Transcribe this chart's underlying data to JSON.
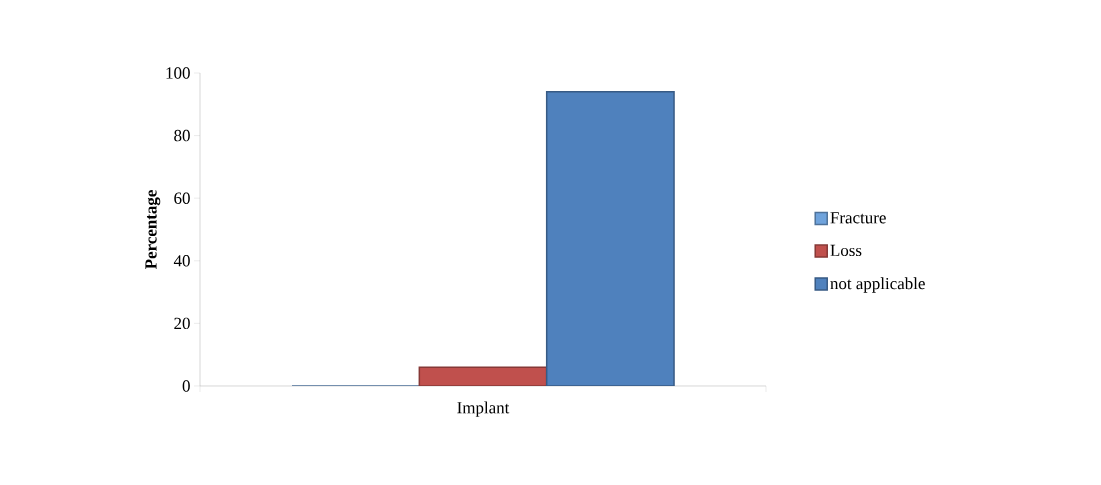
{
  "chart_data": {
    "type": "bar",
    "ylabel": "Percentage",
    "categories": [
      "Implant"
    ],
    "series": [
      {
        "name": "Fracture",
        "color": "#6fa3dc",
        "values": [
          0
        ]
      },
      {
        "name": "Loss",
        "color": "#c0504d",
        "values": [
          6
        ]
      },
      {
        "name": "not applicable",
        "color": "#4f81bd",
        "values": [
          94
        ]
      }
    ],
    "ylim": [
      0,
      100
    ],
    "yticks": [
      0,
      20,
      40,
      60,
      80,
      100
    ],
    "legend": "right"
  }
}
